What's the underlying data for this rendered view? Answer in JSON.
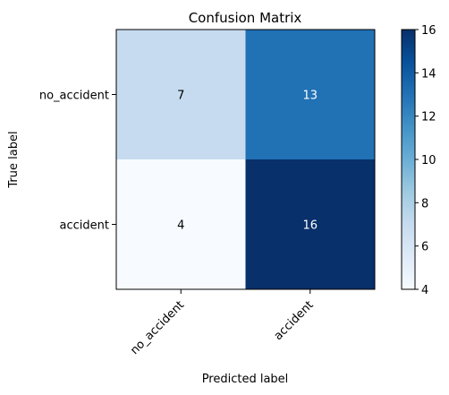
{
  "chart_data": {
    "type": "heatmap",
    "title": "Confusion Matrix",
    "xlabel": "Predicted label",
    "ylabel": "True label",
    "x_categories": [
      "no_accident",
      "accident"
    ],
    "y_categories": [
      "no_accident",
      "accident"
    ],
    "values": [
      [
        7,
        13
      ],
      [
        4,
        16
      ]
    ],
    "colormap": "Blues",
    "colorbar": {
      "min": 4,
      "max": 16,
      "ticks": [
        "4",
        "6",
        "8",
        "10",
        "12",
        "14",
        "16"
      ]
    },
    "grid": false,
    "colors": {
      "cell_min": "#f7fbff",
      "cell_7": "#c6dbef",
      "cell_13": "#2171b5",
      "cell_max": "#08306b",
      "text_dark": "#000000",
      "text_light": "#ffffff"
    }
  }
}
